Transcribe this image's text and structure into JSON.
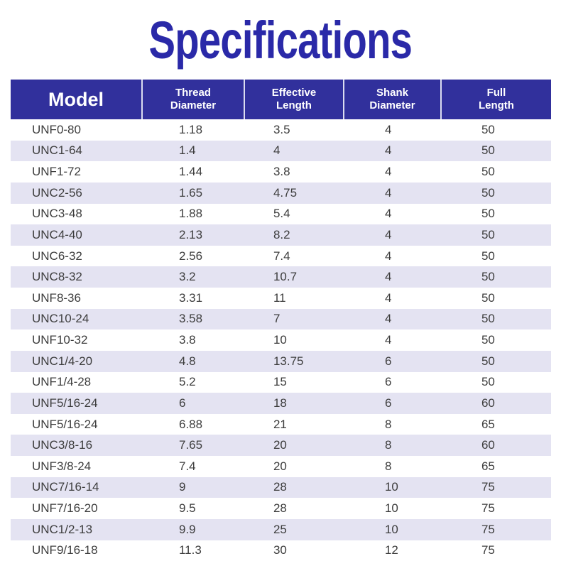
{
  "title": "Specifications",
  "colors": {
    "title": "#2a29a8",
    "header_bg": "#31309c",
    "header_text": "#ffffff",
    "row_alt_bg": "#e4e3f2",
    "row_text": "#3d3d3d"
  },
  "table": {
    "columns": [
      {
        "label": "Model"
      },
      {
        "label": "Thread\nDiameter"
      },
      {
        "label": "Effective\nLength"
      },
      {
        "label": "Shank\nDiameter"
      },
      {
        "label": "Full\nLength"
      }
    ],
    "rows": [
      [
        "UNF0-80",
        "1.18",
        "3.5",
        "4",
        "50"
      ],
      [
        "UNC1-64",
        "1.4",
        "4",
        "4",
        "50"
      ],
      [
        "UNF1-72",
        "1.44",
        "3.8",
        "4",
        "50"
      ],
      [
        "UNC2-56",
        "1.65",
        "4.75",
        "4",
        "50"
      ],
      [
        "UNC3-48",
        "1.88",
        "5.4",
        "4",
        "50"
      ],
      [
        "UNC4-40",
        "2.13",
        "8.2",
        "4",
        "50"
      ],
      [
        "UNC6-32",
        "2.56",
        "7.4",
        "4",
        "50"
      ],
      [
        "UNC8-32",
        "3.2",
        "10.7",
        "4",
        "50"
      ],
      [
        "UNF8-36",
        "3.31",
        "11",
        "4",
        "50"
      ],
      [
        "UNC10-24",
        "3.58",
        "7",
        "4",
        "50"
      ],
      [
        "UNF10-32",
        "3.8",
        "10",
        "4",
        "50"
      ],
      [
        "UNC1/4-20",
        "4.8",
        "13.75",
        "6",
        "50"
      ],
      [
        "UNF1/4-28",
        "5.2",
        "15",
        "6",
        "50"
      ],
      [
        "UNF5/16-24",
        "6",
        "18",
        "6",
        "60"
      ],
      [
        "UNF5/16-24",
        "6.88",
        "21",
        "8",
        "65"
      ],
      [
        "UNC3/8-16",
        "7.65",
        "20",
        "8",
        "60"
      ],
      [
        "UNF3/8-24",
        "7.4",
        "20",
        "8",
        "65"
      ],
      [
        "UNC7/16-14",
        "9",
        "28",
        "10",
        "75"
      ],
      [
        "UNF7/16-20",
        "9.5",
        "28",
        "10",
        "75"
      ],
      [
        "UNC1/2-13",
        "9.9",
        "25",
        "10",
        "75"
      ],
      [
        "UNF9/16-18",
        "11.3",
        "30",
        "12",
        "75"
      ]
    ]
  }
}
